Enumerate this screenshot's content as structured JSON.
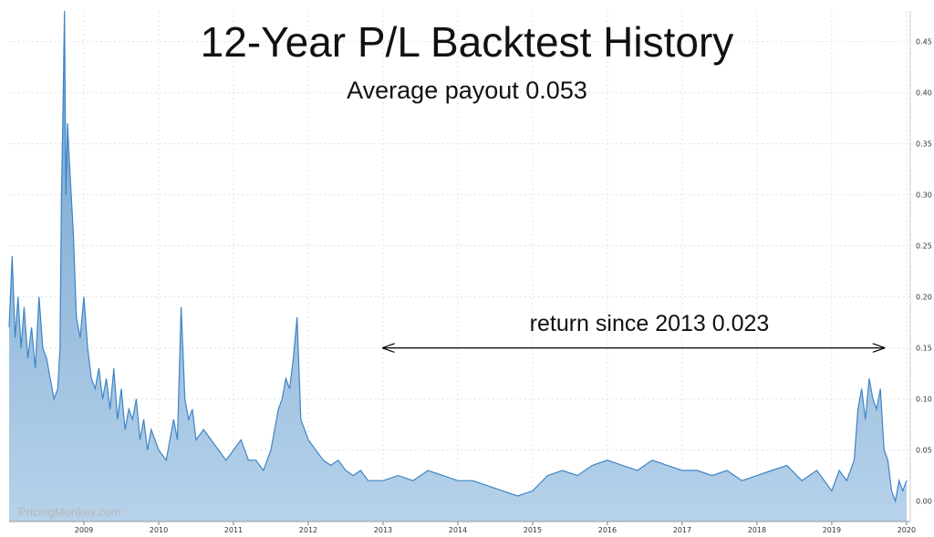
{
  "chart_data": {
    "type": "area",
    "title": "12-Year P/L Backtest History",
    "subtitle": "Average payout 0.053",
    "annotation": {
      "text": "return since 2013 0.023",
      "x_start": 2013.0,
      "x_end": 2019.7,
      "y": 0.15
    },
    "watermark": "PricingMonkey.com",
    "xlim": [
      2008.0,
      2020.05
    ],
    "ylim": [
      -0.02,
      0.48
    ],
    "x_ticks": [
      2009,
      2010,
      2011,
      2012,
      2013,
      2014,
      2015,
      2016,
      2017,
      2018,
      2019,
      2020
    ],
    "x_tick_labels": [
      "2009",
      "2010",
      "2011",
      "2012",
      "2013",
      "2014",
      "2015",
      "2016",
      "2017",
      "2018",
      "2019",
      "2020"
    ],
    "y_ticks": [
      0.0,
      0.05,
      0.1,
      0.15,
      0.2,
      0.25,
      0.3,
      0.35,
      0.4,
      0.45
    ],
    "y_tick_labels": [
      "0.00",
      "0.05",
      "0.10",
      "0.15",
      "0.20",
      "0.25",
      "0.30",
      "0.35",
      "0.40",
      "0.45"
    ],
    "grid": true,
    "series": [
      {
        "x": [
          2008.0,
          2008.04,
          2008.08,
          2008.12,
          2008.16,
          2008.2,
          2008.25,
          2008.3,
          2008.35,
          2008.4,
          2008.45,
          2008.5,
          2008.55,
          2008.6,
          2008.65,
          2008.68,
          2008.7,
          2008.72,
          2008.74,
          2008.76,
          2008.78,
          2008.8,
          2008.83,
          2008.86,
          2008.9,
          2008.95,
          2009.0,
          2009.05,
          2009.1,
          2009.15,
          2009.2,
          2009.25,
          2009.3,
          2009.35,
          2009.4,
          2009.45,
          2009.5,
          2009.55,
          2009.6,
          2009.65,
          2009.7,
          2009.75,
          2009.8,
          2009.85,
          2009.9,
          2009.95,
          2010.0,
          2010.1,
          2010.2,
          2010.25,
          2010.3,
          2010.35,
          2010.4,
          2010.45,
          2010.5,
          2010.6,
          2010.7,
          2010.8,
          2010.9,
          2011.0,
          2011.1,
          2011.2,
          2011.3,
          2011.4,
          2011.5,
          2011.55,
          2011.6,
          2011.65,
          2011.7,
          2011.75,
          2011.8,
          2011.85,
          2011.9,
          2011.95,
          2012.0,
          2012.1,
          2012.2,
          2012.3,
          2012.4,
          2012.5,
          2012.6,
          2012.7,
          2012.8,
          2012.9,
          2013.0,
          2013.2,
          2013.4,
          2013.6,
          2013.8,
          2014.0,
          2014.2,
          2014.4,
          2014.6,
          2014.8,
          2015.0,
          2015.2,
          2015.4,
          2015.6,
          2015.8,
          2016.0,
          2016.2,
          2016.4,
          2016.6,
          2016.8,
          2017.0,
          2017.2,
          2017.4,
          2017.6,
          2017.8,
          2018.0,
          2018.2,
          2018.4,
          2018.6,
          2018.8,
          2019.0,
          2019.1,
          2019.2,
          2019.3,
          2019.35,
          2019.4,
          2019.45,
          2019.5,
          2019.55,
          2019.6,
          2019.65,
          2019.7,
          2019.75,
          2019.8,
          2019.85,
          2019.9,
          2019.95,
          2020.0
        ],
        "y": [
          0.17,
          0.24,
          0.16,
          0.2,
          0.15,
          0.19,
          0.14,
          0.17,
          0.13,
          0.2,
          0.15,
          0.14,
          0.12,
          0.1,
          0.11,
          0.15,
          0.3,
          0.38,
          0.48,
          0.3,
          0.37,
          0.34,
          0.3,
          0.26,
          0.18,
          0.16,
          0.2,
          0.15,
          0.12,
          0.11,
          0.13,
          0.1,
          0.12,
          0.09,
          0.13,
          0.08,
          0.11,
          0.07,
          0.09,
          0.08,
          0.1,
          0.06,
          0.08,
          0.05,
          0.07,
          0.06,
          0.05,
          0.04,
          0.08,
          0.06,
          0.19,
          0.1,
          0.08,
          0.09,
          0.06,
          0.07,
          0.06,
          0.05,
          0.04,
          0.05,
          0.06,
          0.04,
          0.04,
          0.03,
          0.05,
          0.07,
          0.09,
          0.1,
          0.12,
          0.11,
          0.14,
          0.18,
          0.08,
          0.07,
          0.06,
          0.05,
          0.04,
          0.035,
          0.04,
          0.03,
          0.025,
          0.03,
          0.02,
          0.02,
          0.02,
          0.025,
          0.02,
          0.03,
          0.025,
          0.02,
          0.02,
          0.015,
          0.01,
          0.005,
          0.01,
          0.025,
          0.03,
          0.025,
          0.035,
          0.04,
          0.035,
          0.03,
          0.04,
          0.035,
          0.03,
          0.03,
          0.025,
          0.03,
          0.02,
          0.025,
          0.03,
          0.035,
          0.02,
          0.03,
          0.01,
          0.03,
          0.02,
          0.04,
          0.09,
          0.11,
          0.08,
          0.12,
          0.1,
          0.09,
          0.11,
          0.05,
          0.04,
          0.01,
          0.0,
          0.02,
          0.01,
          0.02
        ]
      }
    ],
    "colors": {
      "line": "#3d85c6",
      "fill_top": "#6fa0cc",
      "fill_bottom": "#b7d2ea",
      "annotation": "#000000"
    }
  }
}
